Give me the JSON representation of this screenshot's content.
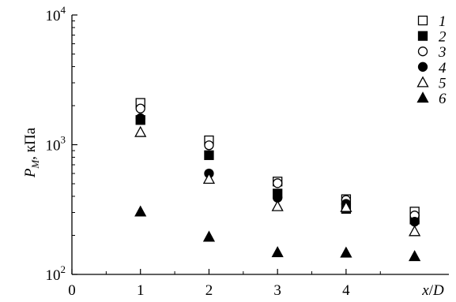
{
  "chart_data": {
    "type": "scatter",
    "yscale": "log",
    "xlim": [
      0,
      5.5
    ],
    "ylim": [
      100,
      10000
    ],
    "x_ticks": [
      0,
      1,
      2,
      3,
      4
    ],
    "x_tick_labels": [
      "0",
      "1",
      "2",
      "3",
      "4"
    ],
    "y_ticks": [
      100,
      1000,
      10000
    ],
    "y_tick_labels": [
      {
        "base": "10",
        "exp": "2"
      },
      {
        "base": "10",
        "exp": "3"
      },
      {
        "base": "10",
        "exp": "4"
      }
    ],
    "xlabel": "x/D",
    "ylabel": {
      "main": "P",
      "sub": "M",
      "rest": ", кПа"
    },
    "legend_position": "top-right",
    "series": [
      {
        "name": "1",
        "marker": "square-open",
        "x": [
          1,
          2,
          3,
          4,
          5
        ],
        "y": [
          2100,
          1080,
          520,
          380,
          305
        ]
      },
      {
        "name": "2",
        "marker": "square-filled",
        "x": [
          1,
          2,
          3,
          4,
          5
        ],
        "y": [
          1550,
          830,
          420,
          320,
          265
        ]
      },
      {
        "name": "3",
        "marker": "circle-open",
        "x": [
          1,
          2,
          3,
          4,
          5
        ],
        "y": [
          1900,
          990,
          505,
          375,
          285
        ]
      },
      {
        "name": "4",
        "marker": "circle-filled",
        "x": [
          1,
          2,
          3,
          4,
          5
        ],
        "y": [
          1600,
          600,
          390,
          350,
          255
        ]
      },
      {
        "name": "5",
        "marker": "triangle-open",
        "x": [
          1,
          2,
          3,
          4,
          5
        ],
        "y": [
          1250,
          545,
          335,
          330,
          215
        ]
      },
      {
        "name": "6",
        "marker": "triangle-filled",
        "x": [
          1,
          2,
          3,
          4,
          5
        ],
        "y": [
          305,
          195,
          148,
          147,
          138
        ]
      }
    ]
  }
}
